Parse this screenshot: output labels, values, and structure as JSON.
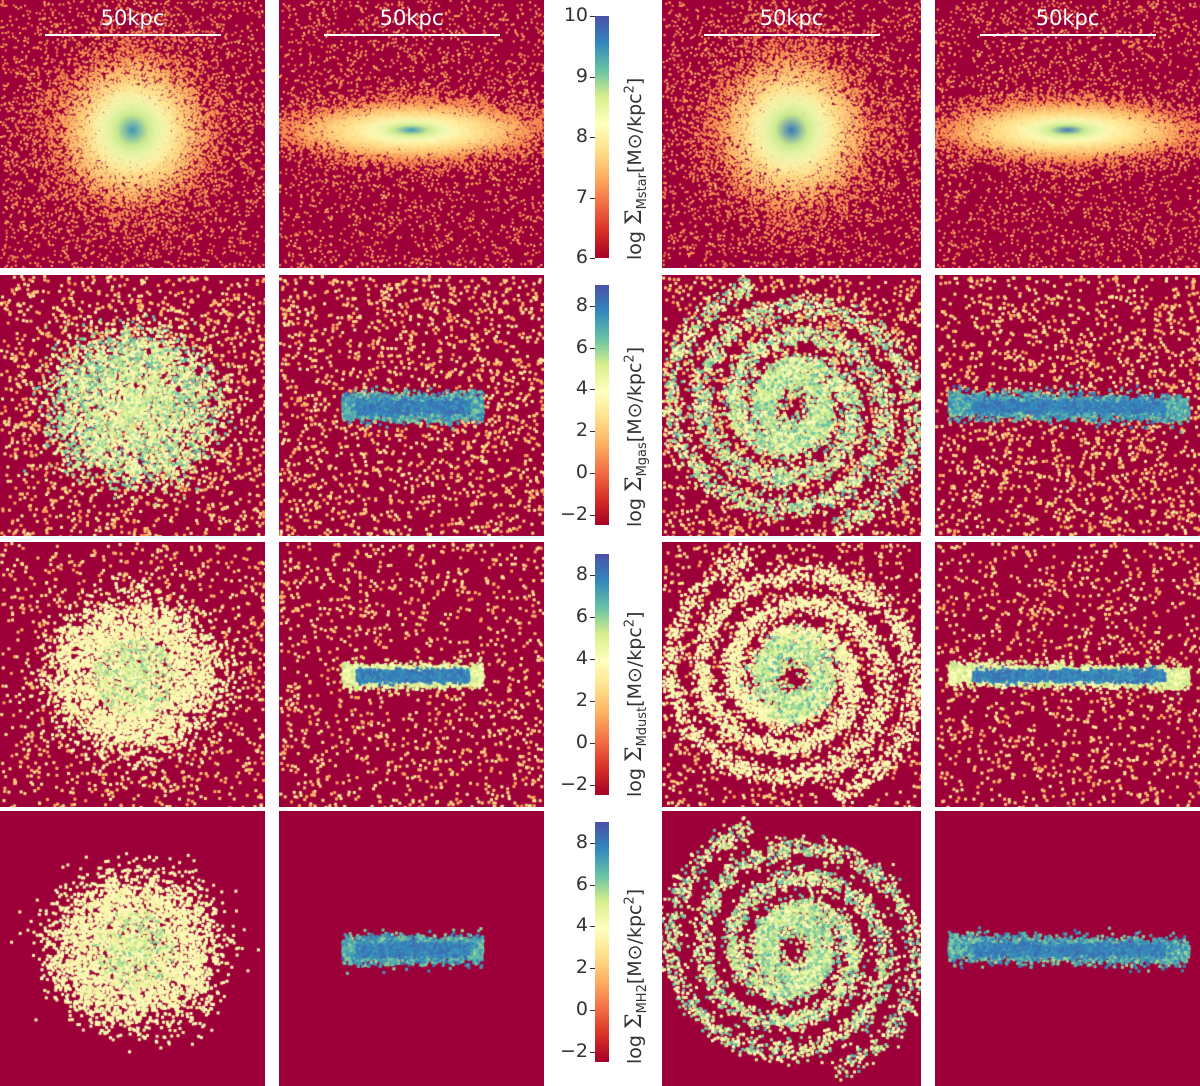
{
  "scale_label": "50kpc",
  "colormap": [
    "#a50026",
    "#d73027",
    "#f46d43",
    "#fdae61",
    "#fee08b",
    "#ffffbf",
    "#d9ef8b",
    "#66c2a5",
    "#3288bd",
    "#4b50a8"
  ],
  "rows": [
    {
      "quantity": "Mstar",
      "label_prefix": "log ",
      "label_sigma": "Σ",
      "label_sub": "Mstar",
      "label_units": "[M⊙/kpc",
      "label_sup": "2",
      "label_close": "]",
      "ticks": [
        "6",
        "7",
        "8",
        "9",
        "10"
      ],
      "range": [
        6,
        10
      ]
    },
    {
      "quantity": "Mgas",
      "label_prefix": "log ",
      "label_sigma": "Σ",
      "label_sub": "Mgas",
      "label_units": "[M⊙/kpc",
      "label_sup": "2",
      "label_close": "]",
      "ticks": [
        "−2",
        "0",
        "2",
        "4",
        "6",
        "8"
      ],
      "range": [
        -2.5,
        9
      ]
    },
    {
      "quantity": "Mdust",
      "label_prefix": "log ",
      "label_sigma": "Σ",
      "label_sub": "Mdust",
      "label_units": "[M⊙/kpc",
      "label_sup": "2",
      "label_close": "]",
      "ticks": [
        "−2",
        "0",
        "2",
        "4",
        "6",
        "8"
      ],
      "range": [
        -2.5,
        9
      ]
    },
    {
      "quantity": "MH2",
      "label_prefix": "log ",
      "label_sigma": "Σ",
      "label_sub": "MH2",
      "label_units": "[M⊙/kpc",
      "label_sup": "2",
      "label_close": "]",
      "ticks": [
        "−2",
        "0",
        "2",
        "4",
        "6",
        "8"
      ],
      "range": [
        -2.5,
        9
      ]
    }
  ],
  "panels_with_scale_bar": [
    "top row, all four galaxy panels"
  ]
}
